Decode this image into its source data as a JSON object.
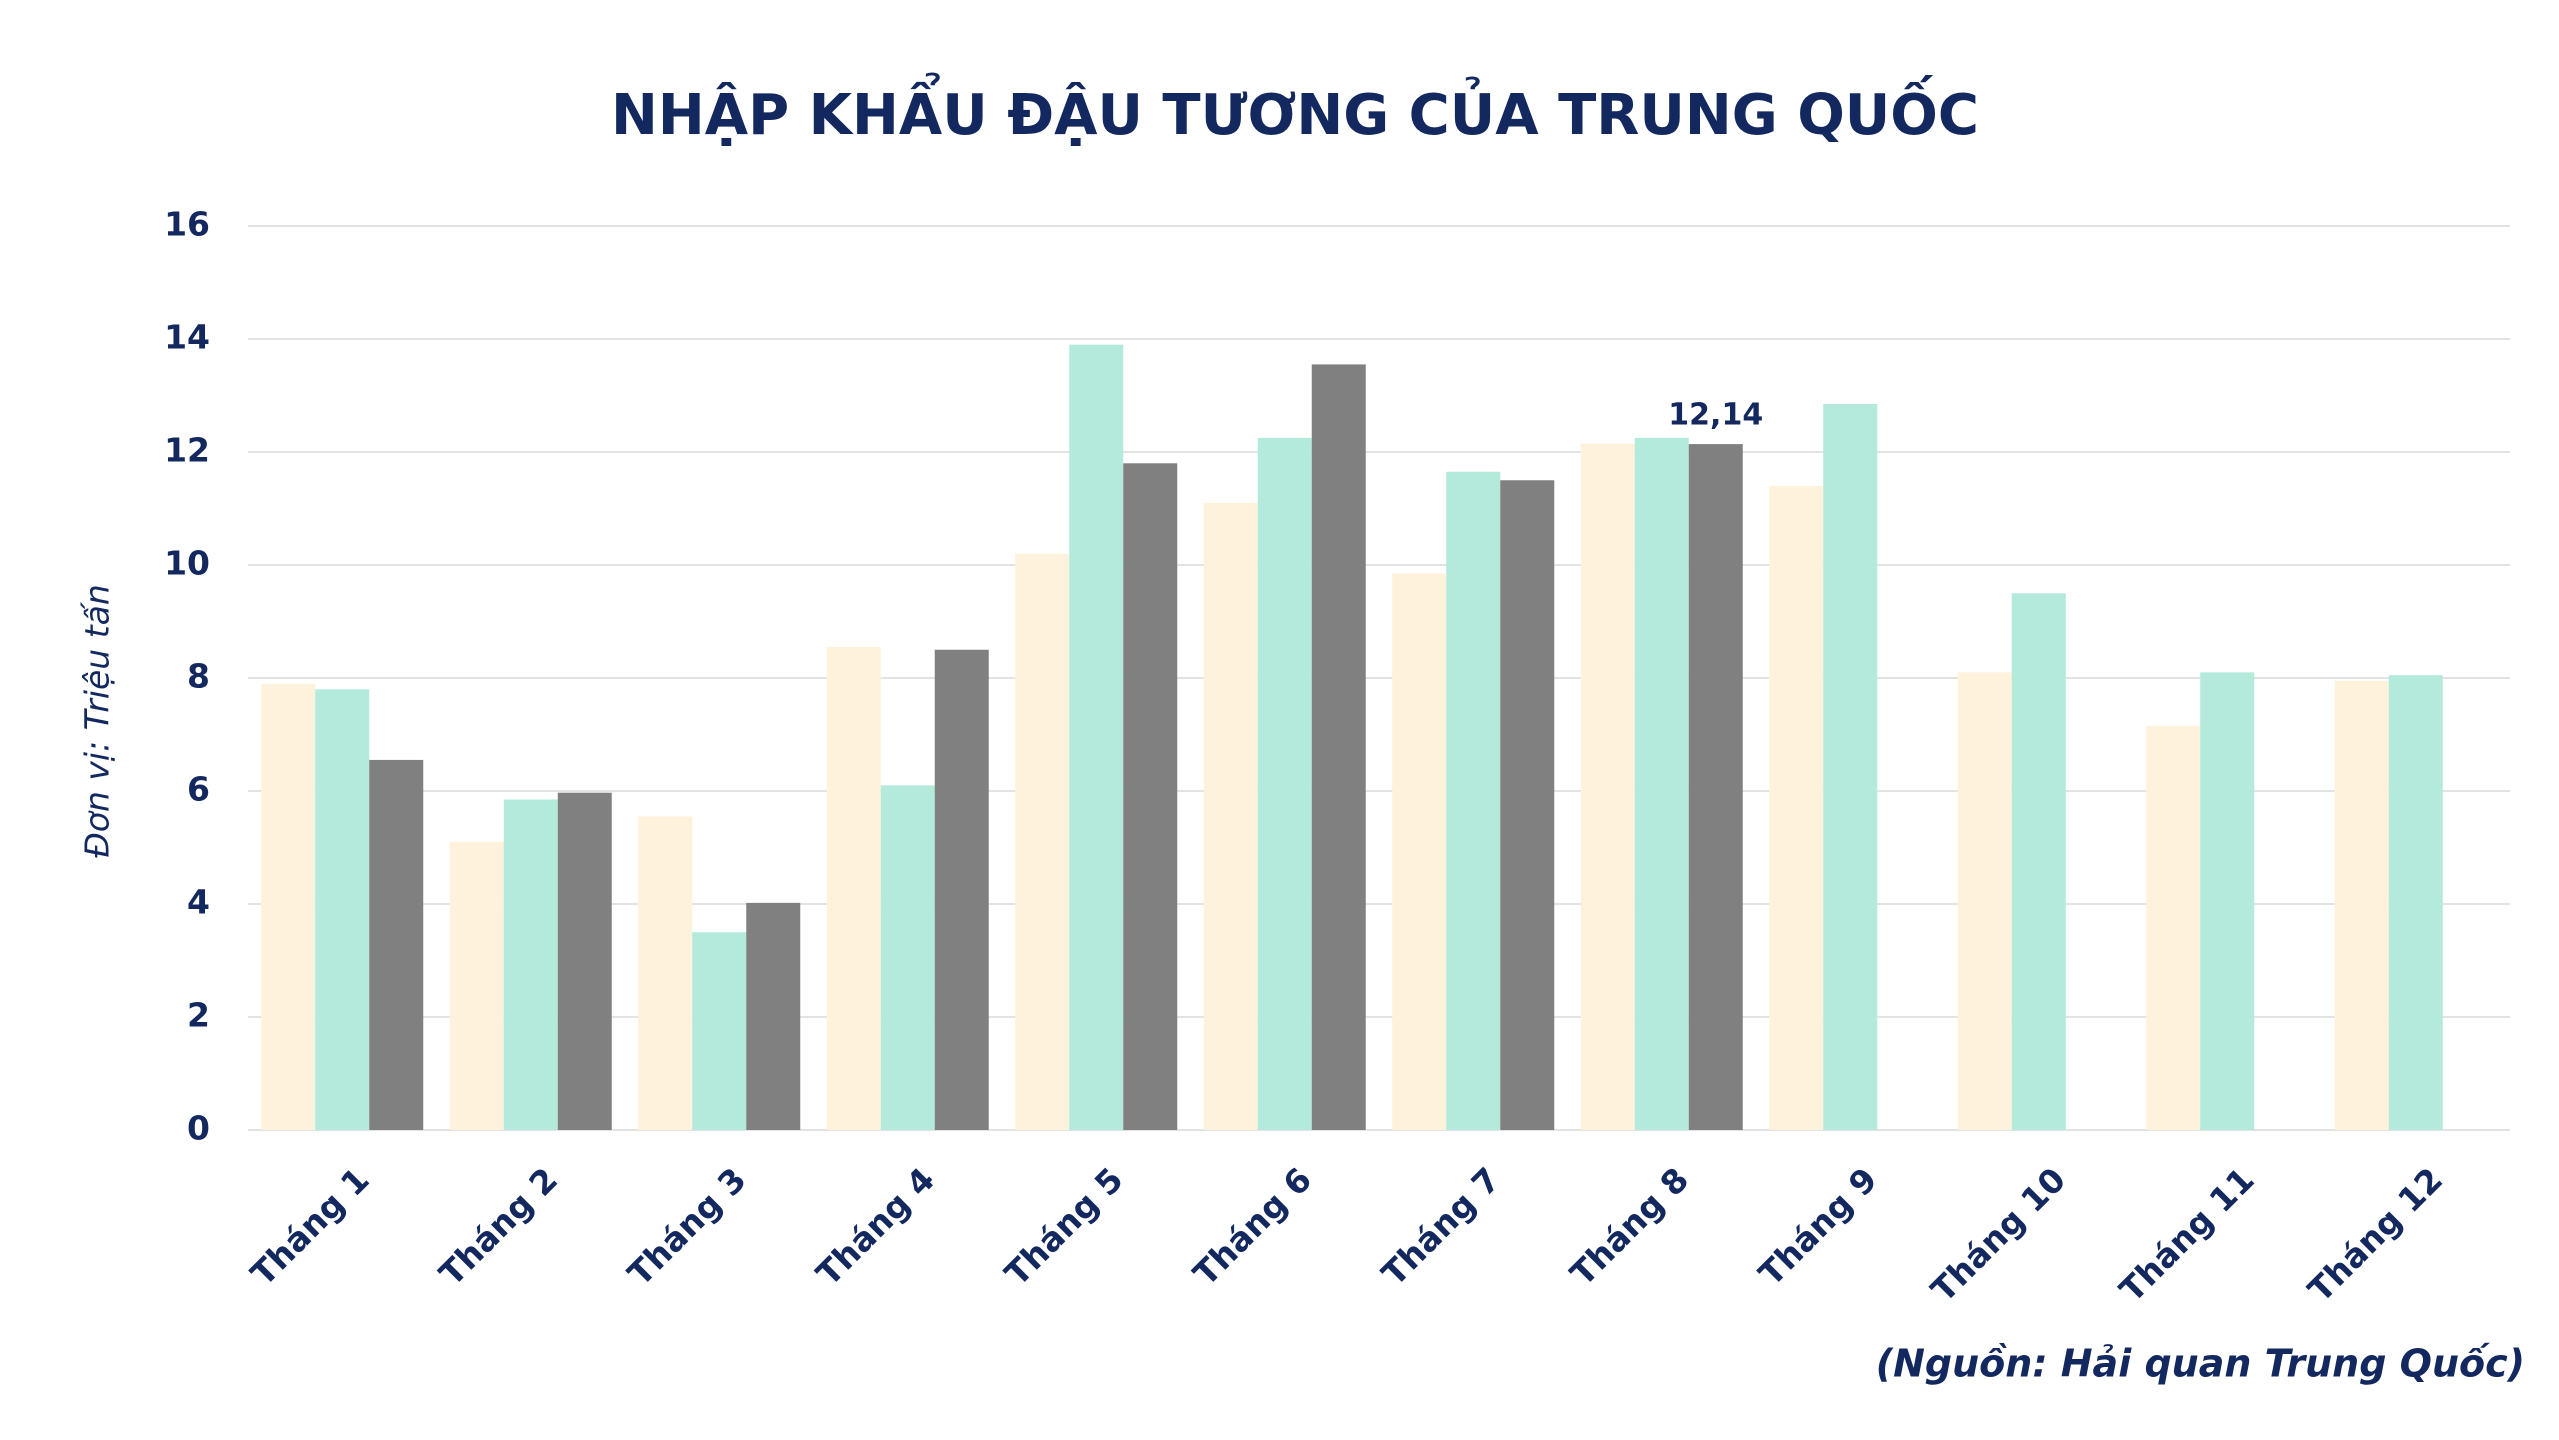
{
  "chart_data": {
    "type": "bar",
    "title": "NHẬP KHẨU ĐẬU TƯƠNG CỦA TRUNG QUỐC",
    "y_label": "Đơn vị: Triệu tấn",
    "source": "(Nguồn: Hải quan Trung Quốc)",
    "categories": [
      "Tháng 1",
      "Tháng 2",
      "Tháng 3",
      "Tháng 4",
      "Tháng 5",
      "Tháng 6",
      "Tháng 7",
      "Tháng 8",
      "Tháng 9",
      "Tháng 10",
      "Tháng 11",
      "Tháng 12"
    ],
    "series": [
      {
        "color": "#fff2dc",
        "values": [
          7.9,
          5.1,
          5.55,
          8.55,
          10.2,
          11.1,
          9.85,
          12.15,
          11.4,
          8.1,
          7.15,
          7.95
        ]
      },
      {
        "color": "#b3eadc",
        "values": [
          7.8,
          5.85,
          3.5,
          6.1,
          13.9,
          12.25,
          11.65,
          12.25,
          12.85,
          9.5,
          8.1,
          8.05
        ]
      },
      {
        "color": "#808080",
        "values": [
          6.55,
          5.97,
          4.02,
          8.5,
          11.8,
          13.55,
          11.5,
          12.14,
          null,
          null,
          null,
          null
        ],
        "value_labels": [
          null,
          null,
          null,
          null,
          null,
          null,
          null,
          "12,14",
          null,
          null,
          null,
          null
        ]
      }
    ],
    "ylim": [
      0,
      16
    ],
    "yticks": [
      0,
      2,
      4,
      6,
      8,
      10,
      12,
      14,
      16
    ],
    "grid": true
  }
}
